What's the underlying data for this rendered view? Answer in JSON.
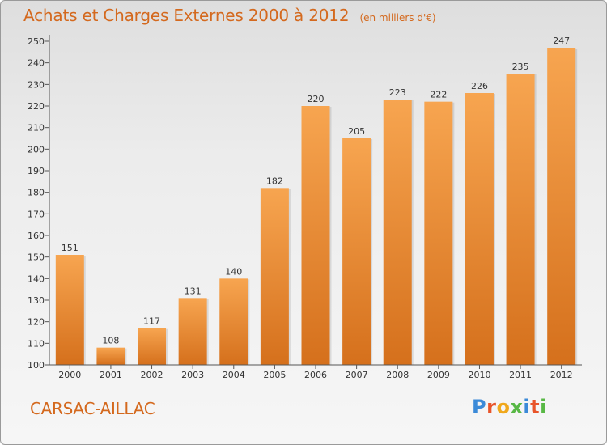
{
  "title": "Achats et Charges Externes 2000 à 2012",
  "unit": "(en milliers d'€)",
  "commune": "CARSAC-AILLAC",
  "logo": {
    "text": "Proxiti",
    "letter_colors": [
      "#3b8ad8",
      "#e8542a",
      "#f0a81c",
      "#58b845",
      "#3b8ad8",
      "#e8542a",
      "#58b845"
    ]
  },
  "colors": {
    "bar_top": "#f7a550",
    "bar_bottom": "#d5701c",
    "text_accent": "#d4691e"
  },
  "chart_data": {
    "type": "bar",
    "categories": [
      "2000",
      "2001",
      "2002",
      "2003",
      "2004",
      "2005",
      "2006",
      "2007",
      "2008",
      "2009",
      "2010",
      "2011",
      "2012"
    ],
    "values": [
      151,
      108,
      117,
      131,
      140,
      182,
      220,
      205,
      223,
      222,
      226,
      235,
      247
    ],
    "ylim": [
      100,
      250
    ],
    "yticks": [
      100,
      110,
      120,
      130,
      140,
      150,
      160,
      170,
      180,
      190,
      200,
      210,
      220,
      230,
      240,
      250
    ],
    "grid": false,
    "xlabel": "",
    "ylabel": ""
  }
}
